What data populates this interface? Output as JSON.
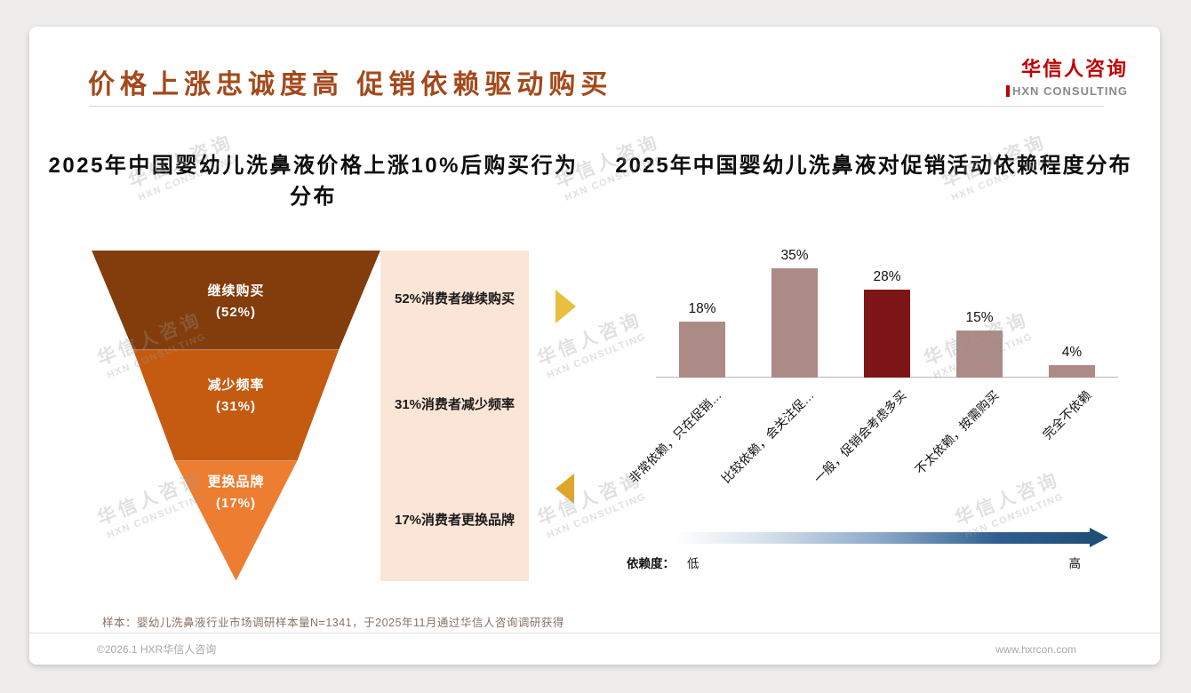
{
  "header": {
    "title": "价格上涨忠诚度高 促销依赖驱动购买",
    "logo_cn": "华信人咨询",
    "logo_en": "HXN CONSULTING"
  },
  "watermark": {
    "cn": "华信人咨询",
    "en": "HXN CONSULTING"
  },
  "colors": {
    "title_accent": "#A3491B",
    "logo_red": "#C00000",
    "arrow_right_gold": "#E9BF3E",
    "arrow_left_gold": "#DDA52B",
    "gradient_dark_blue": "#1F4E79"
  },
  "chart_data": [
    {
      "type": "funnel",
      "title": "2025年中国婴幼儿洗鼻液价格上涨10%后购买行为分布",
      "categories": [
        "继续购买",
        "减少频率",
        "更换品牌"
      ],
      "values": [
        52,
        31,
        17
      ],
      "pct_labels": [
        "(52%)",
        "(31%)",
        "(17%)"
      ],
      "annotations": [
        "52%消费者继续购买",
        "31%消费者减少频率",
        "17%消费者更换品牌"
      ],
      "colors": [
        "#833C0B",
        "#C55A11",
        "#ED7D31"
      ],
      "annotation_bg": "#FBE5D6"
    },
    {
      "type": "bar",
      "title": "2025年中国婴幼儿洗鼻液对促销活动依赖程度分布",
      "categories": [
        "非常依赖，只在促销…",
        "比较依赖，会关注促…",
        "一般，促销会考虑多买",
        "不太依赖，按需购买",
        "完全不依赖"
      ],
      "values": [
        18,
        35,
        28,
        15,
        4
      ],
      "value_labels": [
        "18%",
        "35%",
        "28%",
        "15%",
        "4%"
      ],
      "ylim": [
        0,
        40
      ],
      "grid": false,
      "legend_position": "none",
      "bar_color": "#AC8A85",
      "highlight_index": 2,
      "highlight_color": "#7E1517"
    }
  ],
  "legend": {
    "label": "依赖度：",
    "low": "低",
    "high": "高"
  },
  "footnote": "样本：婴幼儿洗鼻液行业市场调研样本量N=1341，于2025年11月通过华信人咨询调研获得",
  "footer": {
    "left": "©2026.1 HXR华信人咨询",
    "right": "www.hxrcon.com"
  }
}
